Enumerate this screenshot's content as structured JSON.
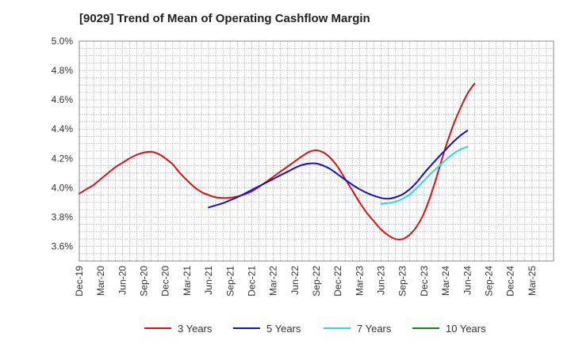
{
  "chart_data": {
    "type": "line",
    "title": "[9029]  Trend of Mean of Operating Cashflow Margin",
    "xlabel": "",
    "ylabel": "",
    "ylim": [
      3.5,
      5.0
    ],
    "yticks": [
      3.6,
      3.8,
      4.0,
      4.2,
      4.4,
      4.6,
      4.8,
      5.0
    ],
    "ytick_labels": [
      "3.6%",
      "3.8%",
      "4.0%",
      "4.2%",
      "4.4%",
      "4.6%",
      "4.8%",
      "5.0%"
    ],
    "categories": [
      "Dec-19",
      "Mar-20",
      "Jun-20",
      "Sep-20",
      "Dec-20",
      "Mar-21",
      "Jun-21",
      "Sep-21",
      "Dec-21",
      "Mar-22",
      "Jun-22",
      "Sep-22",
      "Dec-22",
      "Mar-23",
      "Jun-23",
      "Sep-23",
      "Dec-23",
      "Mar-24",
      "Jun-24",
      "Sep-24",
      "Dec-24",
      "Mar-25"
    ],
    "grid": true,
    "legend_position": "bottom",
    "series": [
      {
        "name": "3 Years",
        "color": "#dd1111",
        "points": [
          [
            0,
            3.96
          ],
          [
            0.33,
            3.99
          ],
          [
            0.67,
            4.02
          ],
          [
            1,
            4.06
          ],
          [
            1.33,
            4.1
          ],
          [
            1.67,
            4.14
          ],
          [
            2,
            4.17
          ],
          [
            2.33,
            4.2
          ],
          [
            2.67,
            4.225
          ],
          [
            3,
            4.24
          ],
          [
            3.33,
            4.245
          ],
          [
            3.67,
            4.23
          ],
          [
            4,
            4.2
          ],
          [
            4.33,
            4.16
          ],
          [
            4.67,
            4.1
          ],
          [
            5,
            4.05
          ],
          [
            5.33,
            4.005
          ],
          [
            5.67,
            3.97
          ],
          [
            6,
            3.95
          ],
          [
            6.33,
            3.935
          ],
          [
            6.67,
            3.93
          ],
          [
            7,
            3.932
          ],
          [
            7.33,
            3.94
          ],
          [
            7.67,
            3.955
          ],
          [
            8,
            3.975
          ],
          [
            8.33,
            4.005
          ],
          [
            8.67,
            4.04
          ],
          [
            9,
            4.075
          ],
          [
            9.33,
            4.11
          ],
          [
            9.67,
            4.145
          ],
          [
            10,
            4.18
          ],
          [
            10.33,
            4.215
          ],
          [
            10.67,
            4.245
          ],
          [
            11,
            4.255
          ],
          [
            11.33,
            4.24
          ],
          [
            11.67,
            4.2
          ],
          [
            12,
            4.14
          ],
          [
            12.33,
            4.06
          ],
          [
            12.67,
            3.98
          ],
          [
            13,
            3.9
          ],
          [
            13.33,
            3.83
          ],
          [
            13.67,
            3.77
          ],
          [
            14,
            3.715
          ],
          [
            14.33,
            3.675
          ],
          [
            14.67,
            3.65
          ],
          [
            15,
            3.65
          ],
          [
            15.33,
            3.68
          ],
          [
            15.67,
            3.74
          ],
          [
            16,
            3.83
          ],
          [
            16.33,
            3.96
          ],
          [
            16.67,
            4.12
          ],
          [
            17,
            4.28
          ],
          [
            17.33,
            4.42
          ],
          [
            17.67,
            4.54
          ],
          [
            18,
            4.64
          ],
          [
            18.33,
            4.71
          ]
        ]
      },
      {
        "name": "5 Years",
        "color": "#1111cc",
        "points": [
          [
            6,
            3.865
          ],
          [
            6.33,
            3.88
          ],
          [
            6.67,
            3.895
          ],
          [
            7,
            3.915
          ],
          [
            7.33,
            3.935
          ],
          [
            7.67,
            3.96
          ],
          [
            8,
            3.985
          ],
          [
            8.33,
            4.01
          ],
          [
            8.67,
            4.035
          ],
          [
            9,
            4.06
          ],
          [
            9.33,
            4.085
          ],
          [
            9.67,
            4.11
          ],
          [
            10,
            4.135
          ],
          [
            10.33,
            4.155
          ],
          [
            10.67,
            4.165
          ],
          [
            11,
            4.165
          ],
          [
            11.33,
            4.15
          ],
          [
            11.67,
            4.125
          ],
          [
            12,
            4.09
          ],
          [
            12.33,
            4.055
          ],
          [
            12.67,
            4.02
          ],
          [
            13,
            3.99
          ],
          [
            13.33,
            3.965
          ],
          [
            13.67,
            3.945
          ],
          [
            14,
            3.93
          ],
          [
            14.33,
            3.925
          ],
          [
            14.67,
            3.935
          ],
          [
            15,
            3.955
          ],
          [
            15.33,
            3.99
          ],
          [
            15.67,
            4.04
          ],
          [
            16,
            4.1
          ],
          [
            16.33,
            4.155
          ],
          [
            16.67,
            4.21
          ],
          [
            17,
            4.26
          ],
          [
            17.33,
            4.31
          ],
          [
            17.67,
            4.355
          ],
          [
            18,
            4.39
          ]
        ]
      },
      {
        "name": "7 Years",
        "color": "#22dddd",
        "points": [
          [
            14,
            3.89
          ],
          [
            14.33,
            3.895
          ],
          [
            14.67,
            3.905
          ],
          [
            15,
            3.925
          ],
          [
            15.33,
            3.955
          ],
          [
            15.67,
            4.0
          ],
          [
            16,
            4.05
          ],
          [
            16.33,
            4.1
          ],
          [
            16.67,
            4.145
          ],
          [
            17,
            4.19
          ],
          [
            17.33,
            4.23
          ],
          [
            17.67,
            4.26
          ],
          [
            18,
            4.28
          ]
        ]
      },
      {
        "name": "10 Years",
        "color": "#118811",
        "points": []
      }
    ]
  }
}
